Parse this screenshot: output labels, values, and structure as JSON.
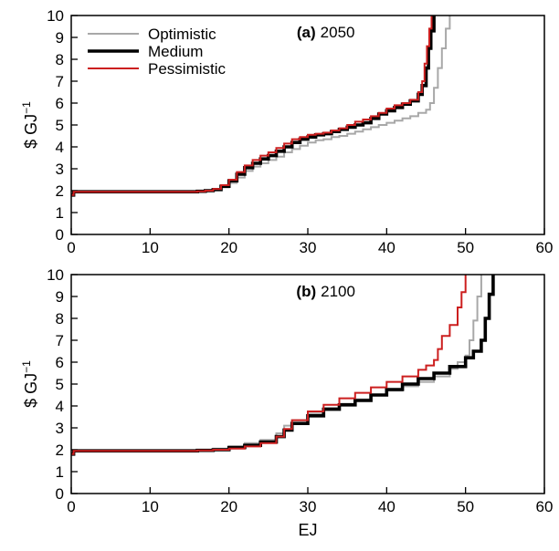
{
  "chart_data": [
    {
      "type": "line",
      "panel_label": "(a)",
      "panel_year": "2050",
      "xlabel": "",
      "ylabel": "$ GJ",
      "ylabel_superscript": "−1",
      "xlim": [
        0,
        60
      ],
      "ylim": [
        0,
        10
      ],
      "x_ticks": [
        0,
        10,
        20,
        30,
        40,
        50,
        60
      ],
      "y_ticks": [
        0,
        1,
        2,
        3,
        4,
        5,
        6,
        7,
        8,
        9,
        10
      ],
      "legend": {
        "placement": "top-left",
        "entries": [
          "Optimistic",
          "Medium",
          "Pessimistic"
        ]
      },
      "series": [
        {
          "name": "Optimistic",
          "color": "#a8a8a8",
          "x": [
            0,
            0.3,
            16,
            17,
            18,
            19,
            20,
            21,
            22,
            23,
            24,
            25,
            26,
            27,
            28,
            29,
            30,
            31,
            32,
            33,
            34,
            35,
            36,
            37,
            38,
            39,
            40,
            41,
            42,
            43,
            44,
            45,
            45.5,
            46,
            46.5,
            47,
            47.5,
            48
          ],
          "y": [
            1.8,
            1.95,
            1.97,
            2.0,
            2.05,
            2.15,
            2.35,
            2.6,
            2.9,
            3.1,
            3.25,
            3.4,
            3.55,
            3.75,
            3.9,
            4.05,
            4.2,
            4.3,
            4.35,
            4.45,
            4.5,
            4.6,
            4.7,
            4.8,
            4.9,
            5.0,
            5.1,
            5.2,
            5.3,
            5.4,
            5.55,
            5.7,
            6.0,
            6.7,
            7.6,
            8.5,
            9.4,
            10
          ]
        },
        {
          "name": "Medium",
          "color": "#000000",
          "x": [
            0,
            0.3,
            16,
            17,
            18,
            19,
            20,
            21,
            22,
            23,
            24,
            25,
            26,
            27,
            28,
            29,
            30,
            31,
            32,
            33,
            34,
            35,
            36,
            37,
            38,
            39,
            40,
            41,
            42,
            43,
            44,
            44.5,
            45,
            45.3,
            45.6,
            46
          ],
          "y": [
            1.8,
            1.95,
            1.97,
            2.0,
            2.05,
            2.2,
            2.45,
            2.75,
            3.05,
            3.25,
            3.45,
            3.6,
            3.8,
            4.0,
            4.2,
            4.35,
            4.45,
            4.55,
            4.6,
            4.7,
            4.8,
            4.9,
            5.0,
            5.1,
            5.3,
            5.5,
            5.65,
            5.8,
            5.95,
            6.1,
            6.4,
            6.8,
            7.6,
            8.5,
            9.3,
            10
          ]
        },
        {
          "name": "Pessimistic",
          "color": "#cc1f1f",
          "x": [
            0,
            0.3,
            16,
            17,
            18,
            19,
            20,
            21,
            22,
            23,
            24,
            25,
            26,
            27,
            28,
            29,
            30,
            31,
            32,
            33,
            34,
            35,
            36,
            37,
            38,
            39,
            40,
            41,
            42,
            43,
            44,
            44.5,
            44.8,
            45.1,
            45.4,
            45.7
          ],
          "y": [
            1.8,
            1.95,
            1.97,
            2.0,
            2.08,
            2.25,
            2.5,
            2.85,
            3.15,
            3.4,
            3.6,
            3.75,
            3.95,
            4.15,
            4.35,
            4.45,
            4.55,
            4.6,
            4.65,
            4.75,
            4.85,
            5.0,
            5.15,
            5.25,
            5.4,
            5.55,
            5.75,
            5.9,
            6.0,
            6.15,
            6.5,
            7.0,
            7.8,
            8.6,
            9.4,
            10
          ]
        }
      ]
    },
    {
      "type": "line",
      "panel_label": "(b)",
      "panel_year": "2100",
      "xlabel": "EJ",
      "ylabel": "$ GJ",
      "ylabel_superscript": "−1",
      "xlim": [
        0,
        60
      ],
      "ylim": [
        0,
        10
      ],
      "x_ticks": [
        0,
        10,
        20,
        30,
        40,
        50,
        60
      ],
      "y_ticks": [
        0,
        1,
        2,
        3,
        4,
        5,
        6,
        7,
        8,
        9,
        10
      ],
      "series": [
        {
          "name": "Optimistic",
          "color": "#a8a8a8",
          "x": [
            0,
            0.3,
            16,
            18,
            20,
            22,
            24,
            26,
            27,
            28,
            30,
            32,
            34,
            36,
            38,
            40,
            42,
            44,
            46,
            48,
            49,
            50,
            50.5,
            51,
            51.5,
            52
          ],
          "y": [
            1.8,
            1.95,
            1.97,
            2.05,
            2.15,
            2.3,
            2.45,
            2.75,
            3.1,
            3.35,
            3.65,
            3.9,
            4.1,
            4.3,
            4.5,
            4.7,
            4.9,
            5.1,
            5.35,
            5.7,
            6.0,
            6.3,
            7.0,
            7.9,
            9.0,
            10
          ]
        },
        {
          "name": "Medium",
          "color": "#000000",
          "x": [
            0,
            0.3,
            16,
            18,
            20,
            22,
            24,
            26,
            27,
            28,
            30,
            32,
            34,
            36,
            38,
            40,
            42,
            44,
            46,
            48,
            50,
            51,
            52,
            52.5,
            53,
            53.5
          ],
          "y": [
            1.8,
            1.95,
            1.97,
            2.0,
            2.1,
            2.2,
            2.35,
            2.6,
            2.9,
            3.2,
            3.55,
            3.85,
            4.05,
            4.25,
            4.5,
            4.75,
            5.0,
            5.25,
            5.5,
            5.8,
            6.2,
            6.5,
            7.0,
            8.0,
            9.1,
            10
          ]
        },
        {
          "name": "Pessimistic",
          "color": "#cc1f1f",
          "x": [
            0,
            0.3,
            16,
            18,
            20,
            22,
            24,
            26,
            27,
            28,
            30,
            32,
            34,
            36,
            38,
            40,
            42,
            44,
            45,
            46,
            46.5,
            47,
            48,
            49,
            49.5,
            50
          ],
          "y": [
            1.8,
            1.95,
            1.97,
            2.0,
            2.05,
            2.15,
            2.3,
            2.6,
            2.95,
            3.35,
            3.75,
            4.05,
            4.35,
            4.6,
            4.85,
            5.1,
            5.35,
            5.65,
            5.85,
            6.1,
            6.6,
            7.2,
            7.7,
            8.5,
            9.2,
            10
          ]
        }
      ]
    }
  ]
}
